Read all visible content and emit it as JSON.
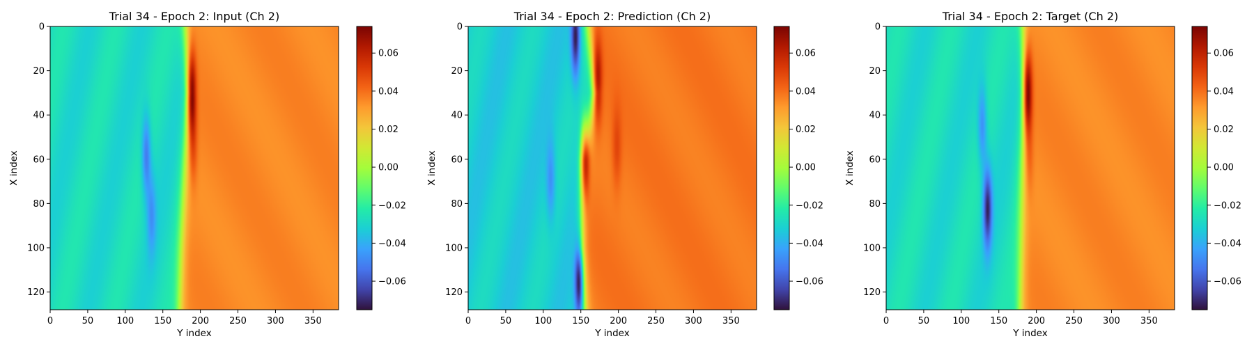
{
  "figure": {
    "colormap": "turbo",
    "colormap_stops": [
      "#30123b",
      "#4145ab",
      "#4675ed",
      "#39a2fc",
      "#1bcfd4",
      "#24eca6",
      "#61fc6c",
      "#a4fc3b",
      "#d1e834",
      "#f3c63a",
      "#fe9b2d",
      "#f36315",
      "#d93806",
      "#b11901",
      "#7a0402"
    ]
  },
  "chart_data": [
    {
      "type": "heatmap",
      "title": "Trial 34 - Epoch 2: Input (Ch 2)",
      "xlabel": "Y index",
      "ylabel": "X index",
      "x_range": [
        0,
        384
      ],
      "y_range": [
        0,
        128
      ],
      "y_inverted": true,
      "xticks": [
        0,
        50,
        100,
        150,
        200,
        250,
        300,
        350
      ],
      "yticks": [
        0,
        20,
        40,
        60,
        80,
        100,
        120
      ],
      "colorbar": {
        "range": [
          -0.075,
          0.074
        ],
        "ticks": [
          -0.06,
          -0.04,
          -0.02,
          0.0,
          0.02,
          0.04,
          0.06
        ],
        "tick_labels": [
          "−0.06",
          "−0.04",
          "−0.02",
          "0.00",
          "0.02",
          "0.04",
          "0.06"
        ]
      },
      "field": {
        "left_value": -0.028,
        "right_value": 0.035,
        "front_x": [
          [
            0,
            180
          ],
          [
            30,
            185
          ],
          [
            60,
            180
          ],
          [
            100,
            175
          ],
          [
            128,
            172
          ]
        ],
        "features": [
          {
            "kind": "min",
            "x": 58,
            "y": 128,
            "value": -0.055
          },
          {
            "kind": "min",
            "x": 85,
            "y": 135,
            "value": -0.045
          },
          {
            "kind": "max",
            "x": 30,
            "y": 188,
            "value": 0.065
          },
          {
            "kind": "max",
            "x": 55,
            "y": 190,
            "value": 0.045
          }
        ]
      }
    },
    {
      "type": "heatmap",
      "title": "Trial 34 - Epoch 2: Prediction (Ch 2)",
      "xlabel": "Y index",
      "ylabel": "X index",
      "x_range": [
        0,
        384
      ],
      "y_range": [
        0,
        128
      ],
      "y_inverted": true,
      "xticks": [
        0,
        50,
        100,
        150,
        200,
        250,
        300,
        350
      ],
      "yticks": [
        0,
        20,
        40,
        60,
        80,
        100,
        120
      ],
      "colorbar": {
        "range": [
          -0.075,
          0.074
        ],
        "ticks": [
          -0.06,
          -0.04,
          -0.02,
          0.0,
          0.02,
          0.04,
          0.06
        ],
        "tick_labels": [
          "−0.06",
          "−0.04",
          "−0.02",
          "0.00",
          "0.02",
          "0.04",
          "0.06"
        ]
      },
      "field": {
        "left_value": -0.032,
        "right_value": 0.038,
        "front_x": [
          [
            0,
            160
          ],
          [
            30,
            168
          ],
          [
            60,
            155
          ],
          [
            100,
            150
          ],
          [
            128,
            155
          ]
        ],
        "features": [
          {
            "kind": "min",
            "x": 5,
            "y": 143,
            "value": -0.075
          },
          {
            "kind": "min",
            "x": 115,
            "y": 148,
            "value": -0.07
          },
          {
            "kind": "min",
            "x": 70,
            "y": 110,
            "value": -0.05
          },
          {
            "kind": "max",
            "x": 60,
            "y": 155,
            "value": 0.055
          },
          {
            "kind": "max",
            "x": 25,
            "y": 172,
            "value": 0.06
          },
          {
            "kind": "max",
            "x": 55,
            "y": 198,
            "value": 0.05
          }
        ]
      }
    },
    {
      "type": "heatmap",
      "title": "Trial 34 - Epoch 2: Target (Ch 2)",
      "xlabel": "Y index",
      "ylabel": "X index",
      "x_range": [
        0,
        384
      ],
      "y_range": [
        0,
        128
      ],
      "y_inverted": true,
      "xticks": [
        0,
        50,
        100,
        150,
        200,
        250,
        300,
        350
      ],
      "yticks": [
        0,
        20,
        40,
        60,
        80,
        100,
        120
      ],
      "colorbar": {
        "range": [
          -0.075,
          0.074
        ],
        "ticks": [
          -0.06,
          -0.04,
          -0.02,
          0.0,
          0.02,
          0.04,
          0.06
        ],
        "tick_labels": [
          "−0.06",
          "−0.04",
          "−0.02",
          "0.00",
          "0.02",
          "0.04",
          "0.06"
        ]
      },
      "field": {
        "left_value": -0.028,
        "right_value": 0.035,
        "front_x": [
          [
            0,
            182
          ],
          [
            30,
            185
          ],
          [
            60,
            182
          ],
          [
            100,
            180
          ],
          [
            128,
            178
          ]
        ],
        "features": [
          {
            "kind": "min",
            "x": 45,
            "y": 128,
            "value": -0.05
          },
          {
            "kind": "min",
            "x": 82,
            "y": 135,
            "value": -0.07
          },
          {
            "kind": "max",
            "x": 30,
            "y": 188,
            "value": 0.068
          },
          {
            "kind": "max",
            "x": 60,
            "y": 190,
            "value": 0.04
          }
        ]
      }
    }
  ]
}
